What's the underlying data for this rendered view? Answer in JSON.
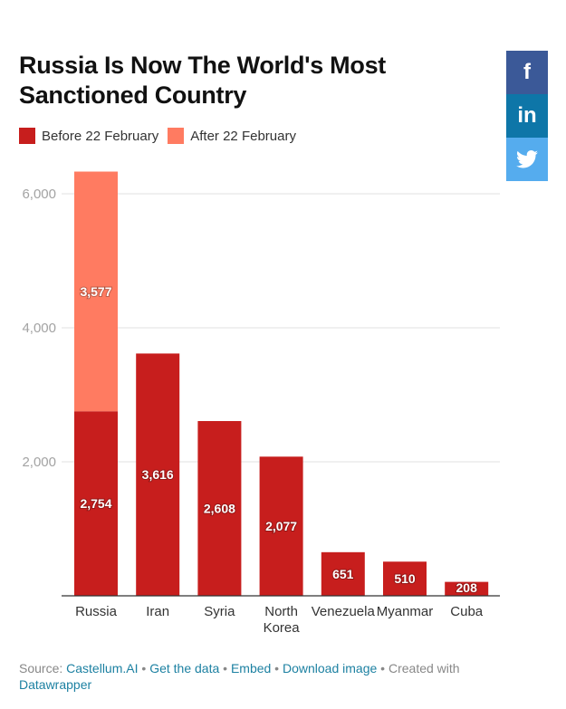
{
  "header": {
    "title": "Russia Is Now The World's Most Sanctioned Country"
  },
  "social": {
    "facebook_label": "f",
    "linkedin_label": "in",
    "twitter_icon": "twitter-bird-icon"
  },
  "footer": {
    "source_prefix": "Source: ",
    "source_link": "Castellum.AI",
    "sep": " • ",
    "get_data": "Get the data",
    "embed": "Embed",
    "download": "Download image",
    "created_with": "Created with",
    "datawrapper": "Datawrapper"
  },
  "chart_data": {
    "type": "bar",
    "stacked": true,
    "title": "Russia Is Now The World's Most Sanctioned Country",
    "xlabel": "",
    "ylabel": "",
    "categories": [
      "Russia",
      "Iran",
      "Syria",
      "North Korea",
      "Venezuela",
      "Myanmar",
      "Cuba"
    ],
    "series": [
      {
        "name": "Before 22 February",
        "color": "#c71e1d",
        "values": [
          2754,
          3616,
          2608,
          2077,
          651,
          510,
          208
        ]
      },
      {
        "name": "After 22 February",
        "color": "#ff7b61",
        "values": [
          3577,
          0,
          0,
          0,
          0,
          0,
          0
        ]
      }
    ],
    "data_labels": [
      [
        "2,754",
        "3,616",
        "2,608",
        "2,077",
        "651",
        "510",
        "208"
      ],
      [
        "3,577",
        "",
        "",
        "",
        "",
        "",
        ""
      ]
    ],
    "yticks": [
      2000,
      4000,
      6000
    ],
    "ytick_labels": [
      "2,000",
      "4,000",
      "6,000"
    ],
    "ylim": [
      0,
      6331
    ],
    "grid": true,
    "legend_position": "top-left"
  }
}
